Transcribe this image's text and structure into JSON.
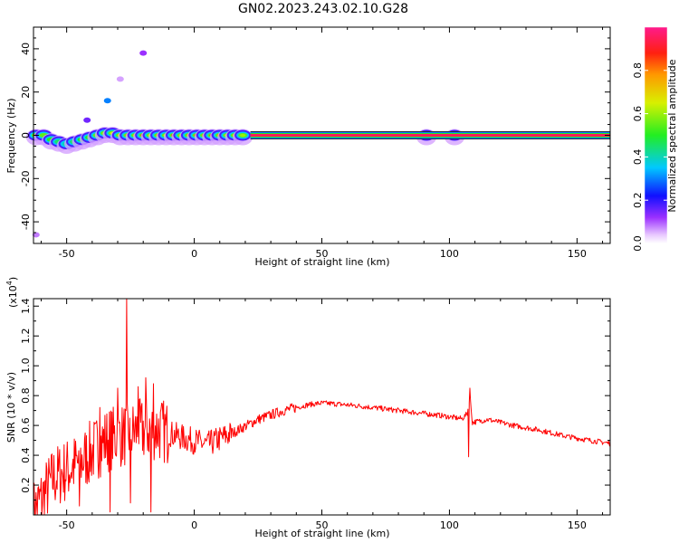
{
  "title": "GN02.2023.243.02.10.G28",
  "colors": {
    "line": "#ff0000",
    "ridge_high": "#e8243c",
    "ridge_mid": "#2ecc40",
    "ridge_low": "#2b7fff",
    "ridge_faint": "#9b30ff",
    "background": "#ffffff"
  },
  "chart_data": [
    {
      "type": "heatmap",
      "title": "GN02.2023.243.02.10.G28",
      "xlabel": "Height of straight line (km)",
      "ylabel": "Frequency (Hz)",
      "xlim": [
        -63,
        163
      ],
      "ylim": [
        -50,
        50
      ],
      "xticks": [
        -50,
        0,
        50,
        100,
        150
      ],
      "yticks": [
        -40,
        -20,
        0,
        20,
        40
      ],
      "xtick_labels": [
        "-50",
        "0",
        "50",
        "100",
        "150"
      ],
      "ytick_labels": [
        "-40",
        "-20",
        "0",
        "20",
        "40"
      ],
      "colorbar": {
        "label": "Normalized spectral amplitude",
        "range": [
          0,
          1
        ],
        "ticks": [
          "0.0",
          "0.2",
          "0.4",
          "0.6",
          "0.8"
        ],
        "tick_values": [
          0,
          0.2,
          0.4,
          0.6,
          0.8
        ],
        "colormap": "rainbow (magenta-blue-cyan-green-yellow-red)"
      },
      "ridge": {
        "frequency_hz": 0,
        "solid_from_km": 22,
        "solid_to_km": 163,
        "solid_amplitude": 0.95
      },
      "blobs": [
        {
          "x": -62,
          "f": 0,
          "amp": 0.7
        },
        {
          "x": -59,
          "f": 0,
          "amp": 0.55
        },
        {
          "x": -56,
          "f": -2,
          "amp": 0.5
        },
        {
          "x": -53,
          "f": -3,
          "amp": 0.45
        },
        {
          "x": -50,
          "f": -4,
          "amp": 0.4
        },
        {
          "x": -47,
          "f": -3,
          "amp": 0.45
        },
        {
          "x": -44,
          "f": -2,
          "amp": 0.5
        },
        {
          "x": -41,
          "f": -1,
          "amp": 0.5
        },
        {
          "x": -38,
          "f": 0,
          "amp": 0.55
        },
        {
          "x": -35,
          "f": 1,
          "amp": 0.6
        },
        {
          "x": -32,
          "f": 1,
          "amp": 0.65
        },
        {
          "x": -29,
          "f": 0,
          "amp": 0.7
        },
        {
          "x": -26,
          "f": 0,
          "amp": 0.8
        },
        {
          "x": -23,
          "f": 0,
          "amp": 0.75
        },
        {
          "x": -20,
          "f": 0,
          "amp": 0.85
        },
        {
          "x": -17,
          "f": 0,
          "amp": 0.7
        },
        {
          "x": -14,
          "f": 0,
          "amp": 0.8
        },
        {
          "x": -11,
          "f": 0,
          "amp": 0.65
        },
        {
          "x": -8,
          "f": 0,
          "amp": 0.85
        },
        {
          "x": -5,
          "f": 0,
          "amp": 0.75
        },
        {
          "x": -2,
          "f": 0,
          "amp": 0.8
        },
        {
          "x": 1,
          "f": 0,
          "amp": 0.85
        },
        {
          "x": 4,
          "f": 0,
          "amp": 0.8
        },
        {
          "x": 7,
          "f": 0,
          "amp": 0.9
        },
        {
          "x": 10,
          "f": 0,
          "amp": 0.8
        },
        {
          "x": 13,
          "f": 0,
          "amp": 0.7
        },
        {
          "x": 16,
          "f": 0,
          "amp": 0.75
        },
        {
          "x": 19,
          "f": 0,
          "amp": 0.6
        },
        {
          "x": 91,
          "f": 0,
          "amp": 0.35
        },
        {
          "x": 102,
          "f": 0,
          "amp": 0.5
        }
      ],
      "scatter_points": [
        {
          "x": -62,
          "f": -46,
          "amp": 0.08
        },
        {
          "x": -42,
          "f": 7,
          "amp": 0.15
        },
        {
          "x": -34,
          "f": 16,
          "amp": 0.3
        },
        {
          "x": -29,
          "f": 26,
          "amp": 0.06
        },
        {
          "x": -20,
          "f": 38,
          "amp": 0.12
        }
      ]
    },
    {
      "type": "line",
      "xlabel": "Height of straight line (km)",
      "ylabel": "SNR (10 * v/v)",
      "y_multiplier_label": "(x10",
      "y_multiplier_exp": "4",
      "y_multiplier_close": ")",
      "xlim": [
        -63,
        163
      ],
      "ylim": [
        0,
        1.45
      ],
      "xticks": [
        -50,
        0,
        50,
        100,
        150
      ],
      "yticks": [
        0.2,
        0.4,
        0.6,
        0.8,
        1.0,
        1.2,
        1.4
      ],
      "xtick_labels": [
        "-50",
        "0",
        "50",
        "100",
        "150"
      ],
      "ytick_labels": [
        "0.2",
        "0.4",
        "0.6",
        "0.8",
        "1.0",
        "1.2",
        "1.4"
      ],
      "series": [
        {
          "color": "#ff0000",
          "x": [
            -63,
            -55,
            -45,
            -35,
            -25,
            -15,
            -5,
            5,
            15,
            25,
            35,
            45,
            50,
            55,
            65,
            75,
            85,
            95,
            105,
            107,
            108,
            109,
            115,
            125,
            135,
            145,
            155,
            163
          ],
          "y": [
            0.02,
            0.25,
            0.35,
            0.5,
            0.55,
            0.58,
            0.52,
            0.47,
            0.55,
            0.64,
            0.7,
            0.74,
            0.75,
            0.745,
            0.73,
            0.71,
            0.69,
            0.67,
            0.645,
            0.68,
            0.8,
            0.62,
            0.64,
            0.6,
            0.57,
            0.53,
            0.5,
            0.48
          ]
        }
      ],
      "spikes": [
        {
          "x": -26.5,
          "y": 1.45
        },
        {
          "x": -30,
          "y": 0.85
        },
        {
          "x": -22,
          "y": 0.86
        },
        {
          "x": -19,
          "y": 0.92
        },
        {
          "x": -16,
          "y": 0.88
        },
        {
          "x": -37,
          "y": 0.72
        },
        {
          "x": 108,
          "y": 0.85
        },
        {
          "x": 107.5,
          "y": 0.39
        }
      ],
      "dips": [
        {
          "x": -33,
          "y": 0.02
        },
        {
          "x": -17,
          "y": 0.02
        },
        {
          "x": -45,
          "y": 0.06
        },
        {
          "x": -25,
          "y": 0.08
        }
      ]
    }
  ]
}
